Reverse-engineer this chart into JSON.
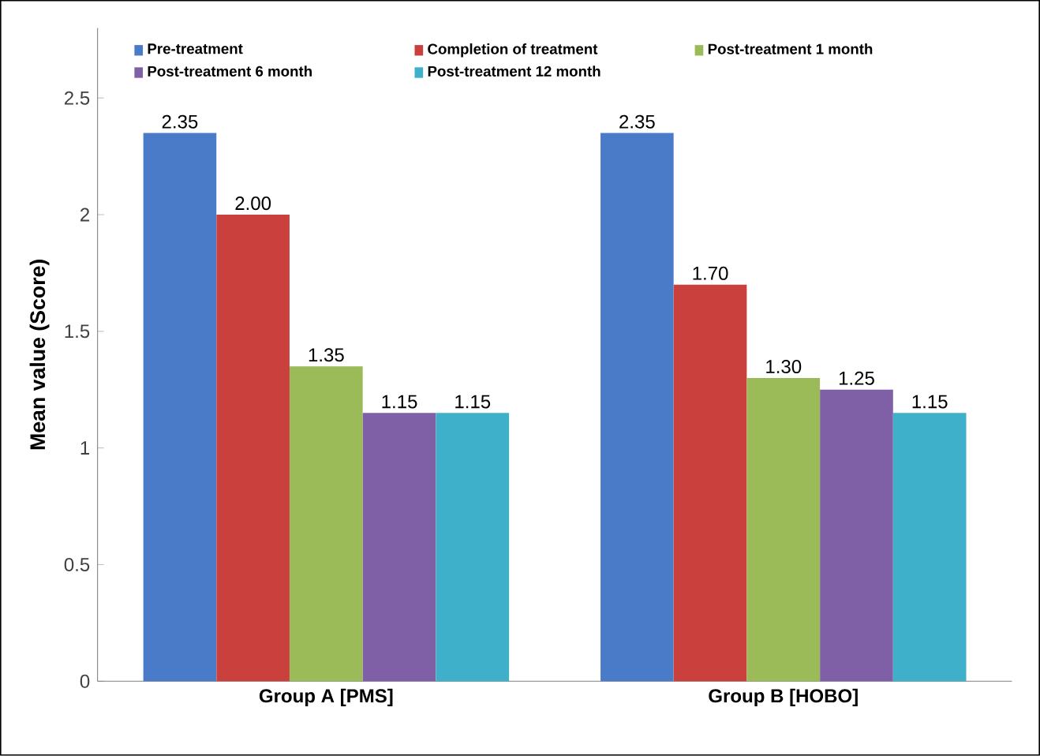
{
  "chart_data": {
    "type": "bar",
    "ylabel": "Mean value (Score)",
    "categories": [
      "Group A [PMS]",
      "Group B [HOBO]"
    ],
    "series": [
      {
        "name": "Pre-treatment",
        "color": "#4a7bc8",
        "values": [
          2.35,
          2.35
        ],
        "value_labels": [
          "2.35",
          "2.35"
        ]
      },
      {
        "name": "Completion of treatment",
        "color": "#c9403d",
        "values": [
          2.0,
          1.7
        ],
        "value_labels": [
          "2.00",
          "1.70"
        ]
      },
      {
        "name": "Post-treatment 1 month",
        "color": "#9bbb59",
        "values": [
          1.35,
          1.3
        ],
        "value_labels": [
          "1.35",
          "1.30"
        ]
      },
      {
        "name": "Post-treatment 6 month",
        "color": "#7f5fa6",
        "values": [
          1.15,
          1.25
        ],
        "value_labels": [
          "1.15",
          "1.25"
        ]
      },
      {
        "name": "Post-treatment 12 month",
        "color": "#3fb0c9",
        "values": [
          1.15,
          1.15
        ],
        "value_labels": [
          "1.15",
          "1.15"
        ]
      }
    ],
    "ylim": [
      0,
      2.8
    ],
    "yticks": [
      0,
      0.5,
      1,
      1.5,
      2,
      2.5
    ],
    "grid": false,
    "legend": "top"
  }
}
